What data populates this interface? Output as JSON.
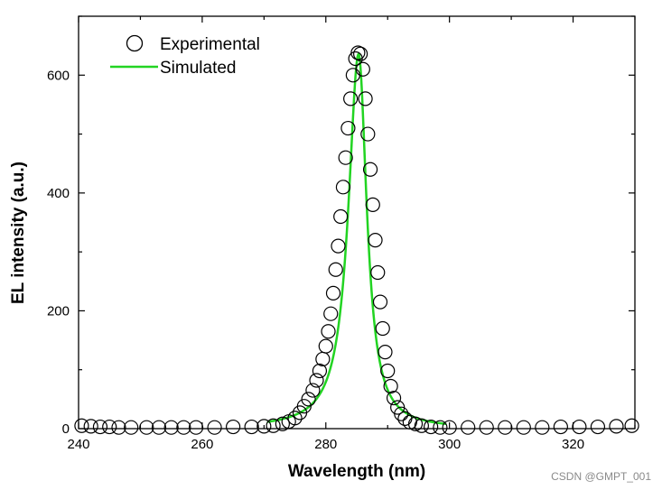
{
  "chart_data": {
    "type": "scatter",
    "title": "",
    "xlabel": "Wavelength (nm)",
    "ylabel": "EL intensity (a.u.)",
    "xlim": [
      240,
      330
    ],
    "ylim": [
      0,
      700
    ],
    "x_ticks": [
      240,
      260,
      280,
      300,
      320
    ],
    "y_ticks": [
      0,
      200,
      400,
      600
    ],
    "legend_position": "top-left",
    "colors": {
      "experimental": "#000000",
      "simulated": "#22d422"
    },
    "series": [
      {
        "name": "Experimental",
        "kind": "scatter",
        "marker": "open-circle",
        "x": [
          240.5,
          242,
          243.5,
          245,
          246.5,
          248.5,
          251,
          253,
          255,
          257,
          259,
          262,
          265,
          268,
          270,
          271.5,
          273,
          274,
          275,
          275.8,
          276.5,
          277.2,
          277.9,
          278.5,
          279,
          279.5,
          280,
          280.4,
          280.8,
          281.2,
          281.6,
          282,
          282.4,
          282.8,
          283.2,
          283.6,
          284,
          284.4,
          284.8,
          285.2,
          285.6,
          286,
          286.4,
          286.8,
          287.2,
          287.6,
          288,
          288.4,
          288.8,
          289.2,
          289.6,
          290,
          290.5,
          291,
          291.6,
          292.2,
          292.8,
          293.6,
          294.5,
          295.5,
          297,
          298.5,
          300,
          303,
          306,
          309,
          312,
          315,
          318,
          321,
          324,
          327,
          329.5
        ],
        "y": [
          5,
          4,
          3,
          3,
          2,
          2,
          2,
          2,
          2,
          2,
          2,
          2,
          3,
          3,
          4,
          5,
          8,
          12,
          18,
          27,
          38,
          50,
          65,
          82,
          98,
          118,
          140,
          165,
          195,
          230,
          270,
          310,
          360,
          410,
          460,
          510,
          560,
          600,
          628,
          638,
          636,
          610,
          560,
          500,
          440,
          380,
          320,
          265,
          215,
          170,
          130,
          98,
          72,
          52,
          36,
          25,
          17,
          11,
          8,
          5,
          3,
          2,
          2,
          2,
          2,
          2,
          2,
          2,
          3,
          3,
          3,
          4,
          5
        ]
      },
      {
        "name": "Simulated",
        "kind": "line",
        "center": 285.3,
        "peak": 636,
        "width_left": 2.0,
        "width_right": 1.6,
        "x_range": [
          270.5,
          299.5
        ]
      }
    ]
  },
  "watermark": "CSDN @GMPT_001"
}
